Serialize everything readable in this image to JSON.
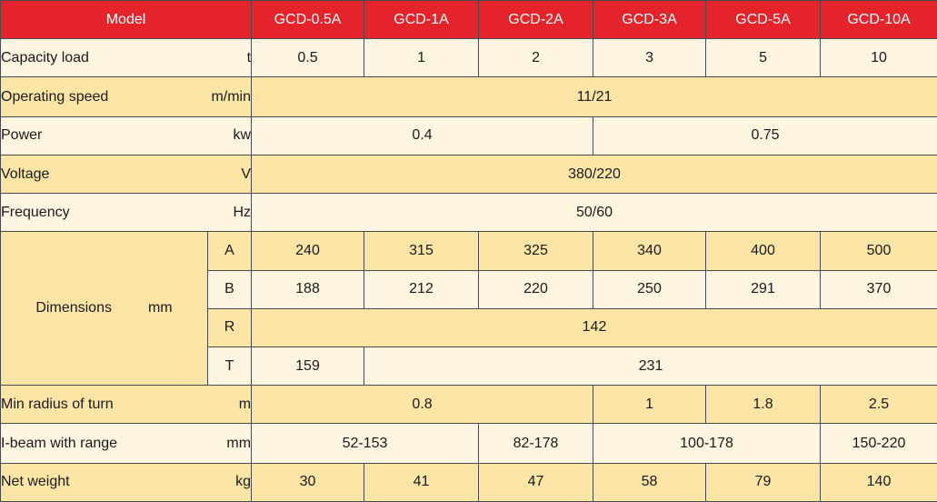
{
  "header": {
    "model_label": "Model",
    "models": [
      "GCD-0.5A",
      "GCD-1A",
      "GCD-2A",
      "GCD-3A",
      "GCD-5A",
      "GCD-10A"
    ]
  },
  "rows": {
    "capacity": {
      "label": "Capacity load",
      "unit": "t",
      "values": [
        "0.5",
        "1",
        "2",
        "3",
        "5",
        "10"
      ]
    },
    "speed": {
      "label": "Operating speed",
      "unit": "m/min",
      "value": "11/21"
    },
    "power": {
      "label": "Power",
      "unit": "kw",
      "values": [
        "0.4",
        "0.75"
      ]
    },
    "voltage": {
      "label": "Voltage",
      "unit": "V",
      "value": "380/220"
    },
    "frequency": {
      "label": "Frequency",
      "unit": "Hz",
      "value": "50/60"
    },
    "dimensions": {
      "label": "Dimensions",
      "unit": "mm",
      "A": {
        "key": "A",
        "values": [
          "240",
          "315",
          "325",
          "340",
          "400",
          "500"
        ]
      },
      "B": {
        "key": "B",
        "values": [
          "188",
          "212",
          "220",
          "250",
          "291",
          "370"
        ]
      },
      "R": {
        "key": "R",
        "value": "142"
      },
      "T": {
        "key": "T",
        "values": [
          "159",
          "231"
        ]
      }
    },
    "radius": {
      "label": "Min radius of turn",
      "unit": "m",
      "values": [
        "0.8",
        "1",
        "1.8",
        "2.5"
      ]
    },
    "ibeam": {
      "label": "I-beam with range",
      "unit": "mm",
      "values": [
        "52-153",
        "82-178",
        "100-178",
        "150-220"
      ]
    },
    "weight": {
      "label": "Net weight",
      "unit": "kg",
      "values": [
        "30",
        "41",
        "47",
        "58",
        "79",
        "140"
      ]
    }
  }
}
